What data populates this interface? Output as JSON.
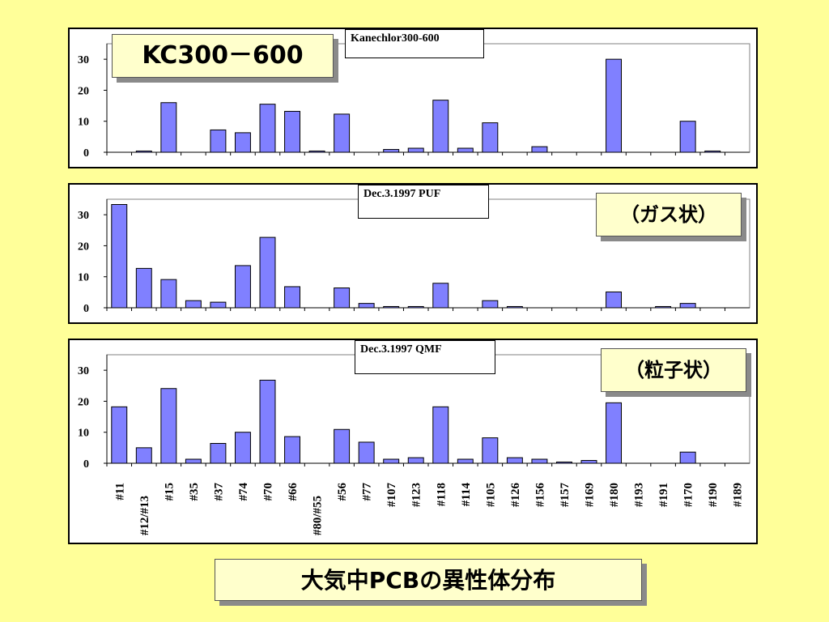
{
  "page_title": "大気中PCBの異性体分布",
  "chart_data": [
    {
      "type": "bar",
      "badge": "KC300－600",
      "subtitle": "Kanechlor300-600",
      "categories": [
        "#11",
        "#12/#13",
        "#15",
        "#35",
        "#37",
        "#74",
        "#70",
        "#66",
        "#80/#55",
        "#56",
        "#77",
        "#107",
        "#123",
        "#118",
        "#114",
        "#105",
        "#126",
        "#156",
        "#157",
        "#169",
        "#180",
        "#193",
        "#191",
        "#170",
        "#190",
        "#189"
      ],
      "values": [
        0,
        0.4,
        16,
        0,
        7.2,
        6.3,
        15.5,
        13.2,
        0.4,
        12.3,
        0,
        0.9,
        1.3,
        16.8,
        1.3,
        9.5,
        0,
        1.8,
        0,
        0,
        30,
        0,
        0,
        10,
        0.4,
        0
      ],
      "ylim": [
        0,
        35
      ],
      "yticks": [
        0,
        10,
        20,
        30
      ],
      "bar_color": "#8080ff"
    },
    {
      "type": "bar",
      "badge": "（ガス状）",
      "subtitle": "Dec.3.1997 PUF",
      "categories": [
        "#11",
        "#12/#13",
        "#15",
        "#35",
        "#37",
        "#74",
        "#70",
        "#66",
        "#80/#55",
        "#56",
        "#77",
        "#107",
        "#123",
        "#118",
        "#114",
        "#105",
        "#126",
        "#156",
        "#157",
        "#169",
        "#180",
        "#193",
        "#191",
        "#170",
        "#190",
        "#189"
      ],
      "values": [
        33.3,
        12.7,
        9.1,
        2.3,
        1.8,
        13.6,
        22.7,
        6.8,
        0,
        6.4,
        1.4,
        0.4,
        0.4,
        7.9,
        0,
        2.3,
        0.4,
        0,
        0,
        0,
        5.1,
        0,
        0.4,
        1.4,
        0,
        0
      ],
      "ylim": [
        0,
        35
      ],
      "yticks": [
        0,
        10,
        20,
        30
      ],
      "bar_color": "#8080ff"
    },
    {
      "type": "bar",
      "badge": "（粒子状）",
      "subtitle": "Dec.3.1997 QMF",
      "categories": [
        "#11",
        "#12/#13",
        "#15",
        "#35",
        "#37",
        "#74",
        "#70",
        "#66",
        "#80/#55",
        "#56",
        "#77",
        "#107",
        "#123",
        "#118",
        "#114",
        "#105",
        "#126",
        "#156",
        "#157",
        "#169",
        "#180",
        "#193",
        "#191",
        "#170",
        "#190",
        "#189"
      ],
      "values": [
        18.2,
        5,
        24.1,
        1.3,
        6.4,
        10,
        26.8,
        8.6,
        0,
        10.9,
        6.8,
        1.3,
        1.8,
        18.2,
        1.3,
        8.2,
        1.8,
        1.3,
        0.4,
        0.9,
        19.5,
        0,
        0,
        3.6,
        0,
        0
      ],
      "ylim": [
        0,
        35
      ],
      "yticks": [
        0,
        10,
        20,
        30
      ],
      "bar_color": "#8080ff"
    }
  ]
}
